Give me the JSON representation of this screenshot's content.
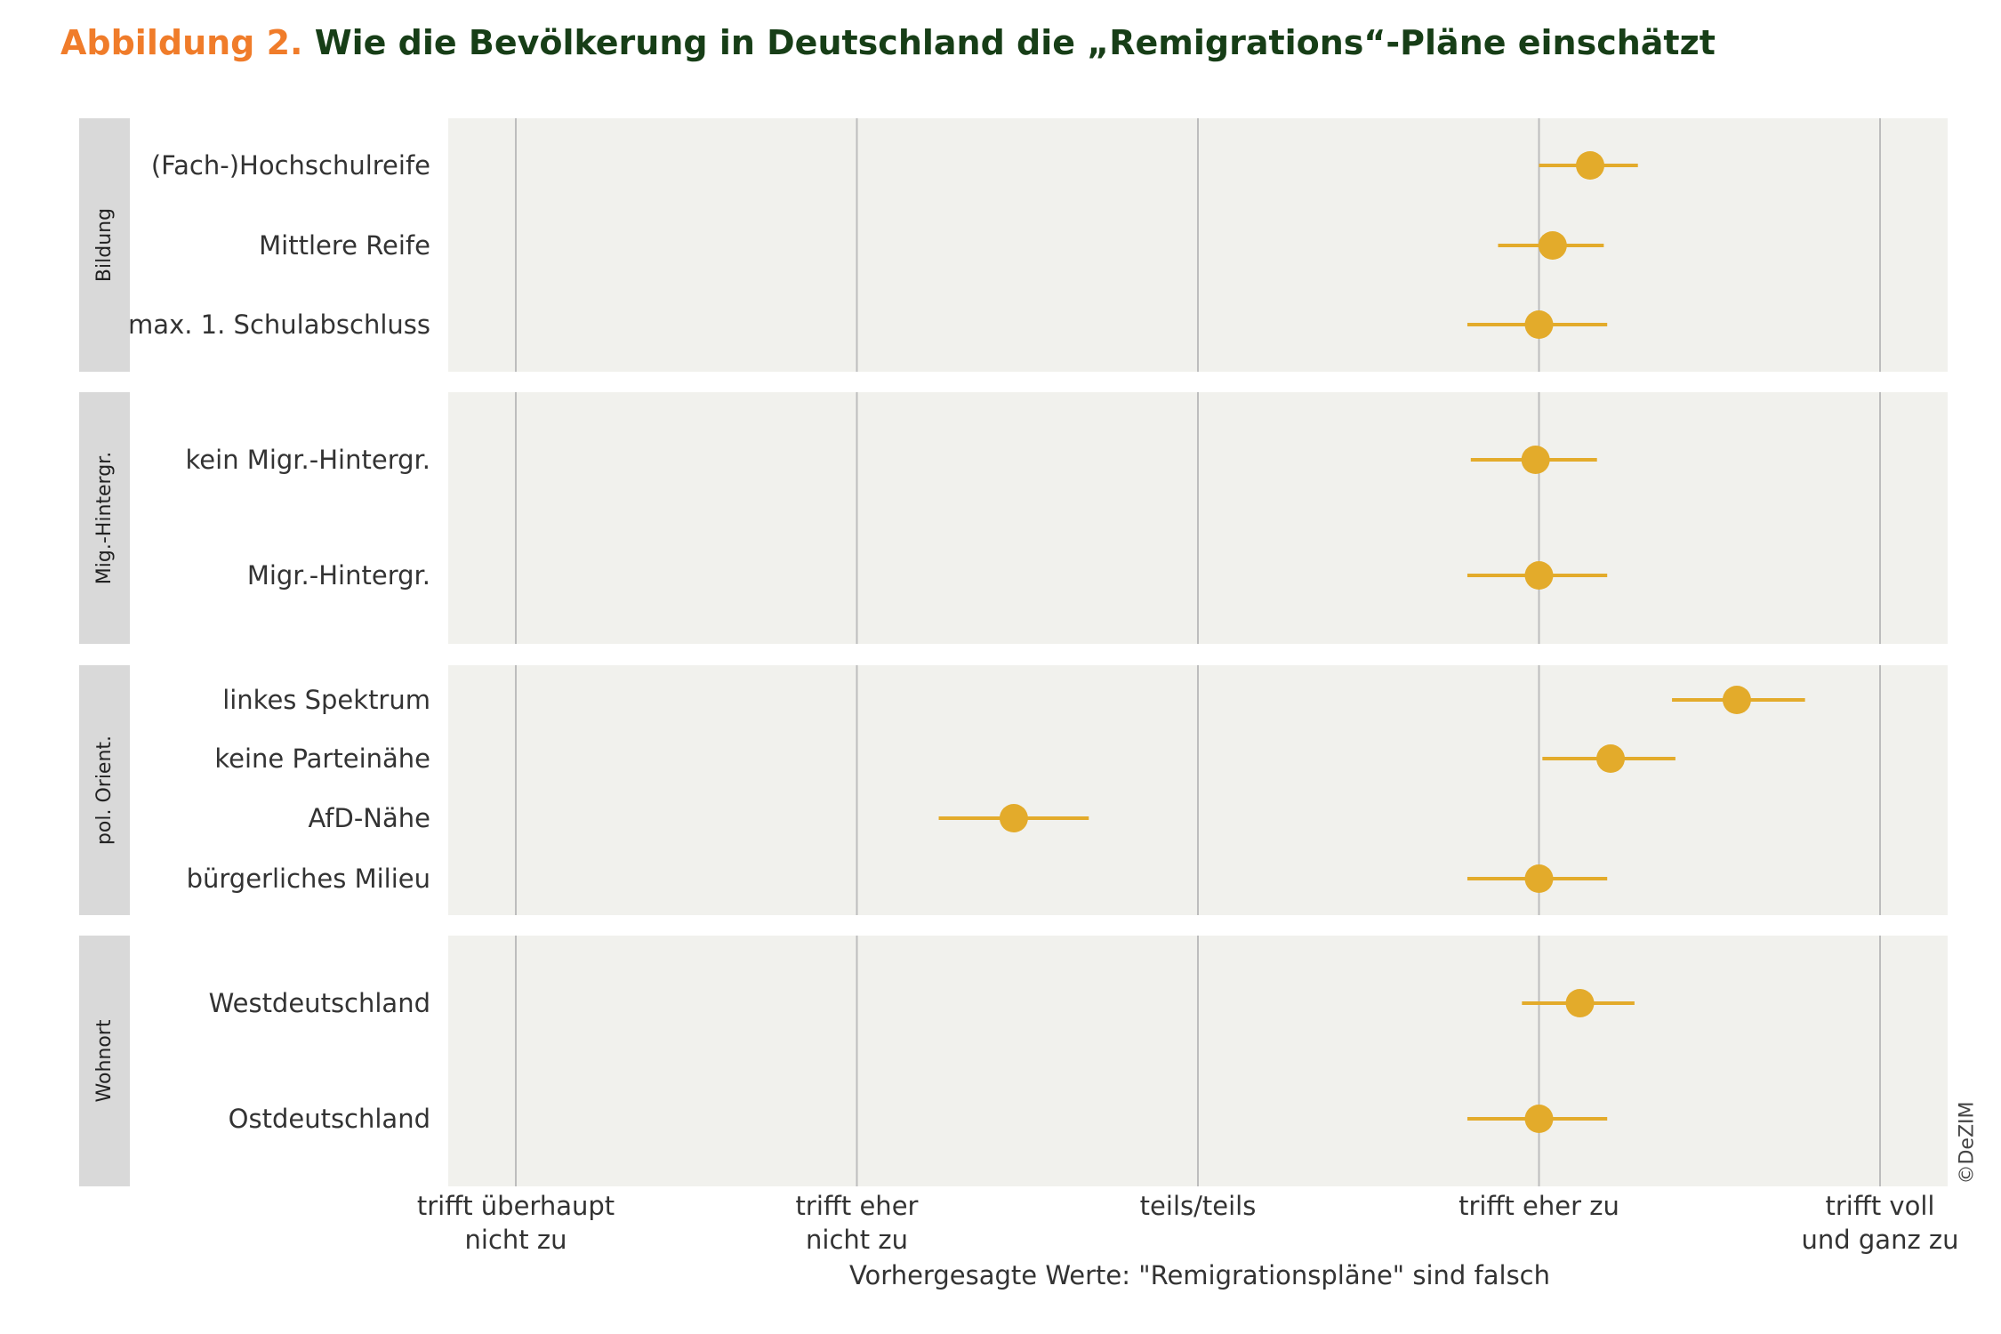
{
  "title": {
    "prefix": "Abbildung 2.",
    "text": "Wie die Bevölkerung in Deutschland die „Remigrations“-Pläne einschätzt"
  },
  "colors": {
    "title_prefix": "#f07c2a",
    "title_main": "#173e17",
    "point": "#e3ab2b",
    "panel_bg": "#f1f1ed",
    "strip_bg": "#d9d9d9",
    "grid": "#bdbdbd"
  },
  "chart_data": {
    "type": "scatter",
    "subtype": "dot-and-whisker (coefficient plot)",
    "xlabel": "Vorhergesagte Werte: \"Remigrationspläne\" sind falsch",
    "ylabel": "",
    "xlim": [
      0.8,
      5.2
    ],
    "x_ticks": [
      {
        "value": 1,
        "label": [
          "trifft überhaupt",
          "nicht zu"
        ]
      },
      {
        "value": 2,
        "label": [
          "trifft eher",
          "nicht zu"
        ]
      },
      {
        "value": 3,
        "label": [
          "teils/teils"
        ]
      },
      {
        "value": 4,
        "label": [
          "trifft eher zu"
        ]
      },
      {
        "value": 5,
        "label": [
          "trifft voll",
          "und ganz zu"
        ]
      }
    ],
    "grid": true,
    "legend": "none",
    "credit": "©DeZIM",
    "facets": [
      {
        "name": "Bildung",
        "rows": [
          {
            "label": "(Fach-)Hochschulreife",
            "value": 4.15,
            "ci": [
              4.0,
              4.29
            ]
          },
          {
            "label": "Mittlere Reife",
            "value": 4.04,
            "ci": [
              3.88,
              4.19
            ]
          },
          {
            "label": "max. 1. Schulabschluss",
            "value": 4.0,
            "ci": [
              3.79,
              4.2
            ]
          }
        ]
      },
      {
        "name": "Mig.-Hintergr.",
        "rows": [
          {
            "label": "kein Migr.-Hintergr.",
            "value": 3.99,
            "ci": [
              3.8,
              4.17
            ]
          },
          {
            "label": "Migr.-Hintergr.",
            "value": 4.0,
            "ci": [
              3.79,
              4.2
            ]
          }
        ]
      },
      {
        "name": "pol. Orient.",
        "rows": [
          {
            "label": "linkes Spektrum",
            "value": 4.58,
            "ci": [
              4.39,
              4.78
            ]
          },
          {
            "label": "keine Parteinähe",
            "value": 4.21,
            "ci": [
              4.01,
              4.4
            ]
          },
          {
            "label": "AfD-Nähe",
            "value": 2.46,
            "ci": [
              2.24,
              2.68
            ]
          },
          {
            "label": "bürgerliches Milieu",
            "value": 4.0,
            "ci": [
              3.79,
              4.2
            ]
          }
        ]
      },
      {
        "name": "Wohnort",
        "rows": [
          {
            "label": "Westdeutschland",
            "value": 4.12,
            "ci": [
              3.95,
              4.28
            ]
          },
          {
            "label": "Ostdeutschland",
            "value": 4.0,
            "ci": [
              3.79,
              4.2
            ]
          }
        ]
      }
    ]
  }
}
